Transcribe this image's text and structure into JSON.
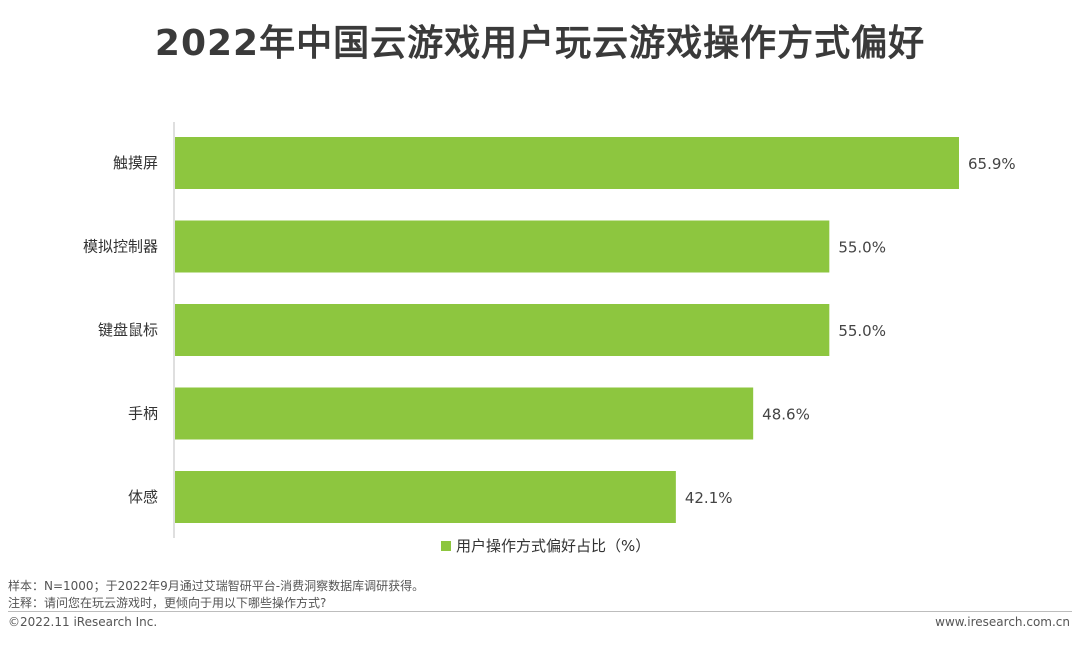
{
  "title": "2022年中国云游戏用户玩云游戏操作方式偏好",
  "chart_data": {
    "type": "bar",
    "orientation": "horizontal",
    "categories": [
      "触摸屏",
      "模拟控制器",
      "键盘鼠标",
      "手柄",
      "体感"
    ],
    "series": [
      {
        "name": "用户操作方式偏好占比（%）",
        "values": [
          65.9,
          55.0,
          55.0,
          48.6,
          42.1
        ],
        "labels": [
          "65.9%",
          "55.0%",
          "55.0%",
          "48.6%",
          "42.1%"
        ]
      }
    ],
    "bar_color": "#8dc63f",
    "legend_position": "bottom",
    "grid": false
  },
  "notes": {
    "sample": "样本：N=1000；于2022年9月通过艾瑞智研平台-消费洞察数据库调研获得。",
    "remark": "注释：请问您在玩云游戏时，更倾向于用以下哪些操作方式?"
  },
  "footer": {
    "copyright": "©2022.11 iResearch Inc.",
    "website": "www.iresearch.com.cn"
  }
}
